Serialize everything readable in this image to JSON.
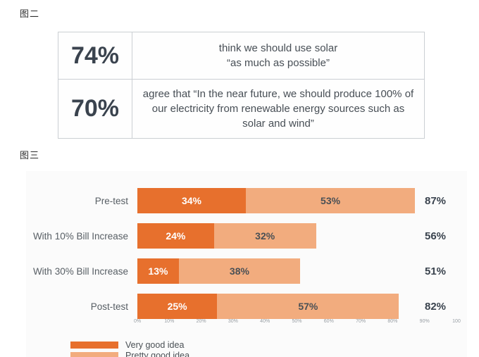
{
  "figure2": {
    "label": "图二",
    "stats_table": {
      "rows": [
        {
          "value": "74%",
          "text": "think we should use solar\n“as much as possible”"
        },
        {
          "value": "70%",
          "text": "agree that “In the near future, we should produce 100% of our electricity from renewable energy sources such as solar and wind”"
        }
      ]
    }
  },
  "figure3": {
    "label": "图三"
  },
  "chart_data": {
    "type": "bar",
    "orientation": "horizontal",
    "stacked": true,
    "title": "",
    "categories": [
      "Pre-test",
      "With 10% Bill Increase",
      "With 30% Bill Increase",
      "Post-test"
    ],
    "series": [
      {
        "name": "Very good idea",
        "color": "#e7702d",
        "label_color": "#ffffff",
        "values": [
          34,
          24,
          13,
          25
        ]
      },
      {
        "name": "Pretty good idea",
        "color": "#f2ac7e",
        "label_color": "#4a5055",
        "values": [
          53,
          32,
          38,
          57
        ]
      }
    ],
    "totals": [
      "87%",
      "56%",
      "51%",
      "82%"
    ],
    "segment_labels": [
      [
        "34%",
        "53%"
      ],
      [
        "24%",
        "32%"
      ],
      [
        "13%",
        "38%"
      ],
      [
        "25%",
        "57%"
      ]
    ],
    "x_ticks": [
      "0%",
      "10%",
      "20%",
      "30%",
      "40%",
      "50%",
      "60%",
      "70%",
      "80%",
      "90%",
      "100"
    ],
    "xlim": [
      0,
      100
    ],
    "grid": false,
    "legend_position": "bottom-left"
  },
  "colors": {
    "accent_dark_orange": "#e7702d",
    "accent_light_orange": "#f2ac7e",
    "headline_slate": "#3a434e"
  }
}
